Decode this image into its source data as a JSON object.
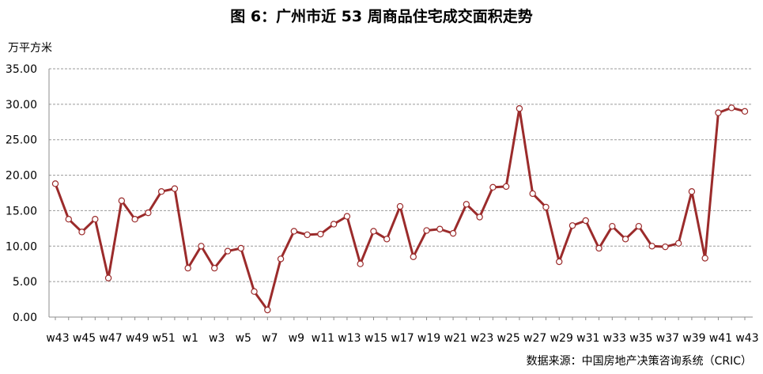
{
  "chart_data": {
    "type": "line",
    "title": "图 6：广州市近 53 周商品住宅成交面积走势",
    "ylabel": "万平方米",
    "source": "数据来源：中国房地产决策咨询系统（CRIC）",
    "ylim": [
      0,
      35
    ],
    "yticks": [
      "0.00",
      "5.00",
      "10.00",
      "15.00",
      "20.00",
      "25.00",
      "30.00",
      "35.00"
    ],
    "grid": true,
    "legend": "none",
    "line_color": "#9b2b2b",
    "categories": [
      "w43",
      "w44",
      "w45",
      "w46",
      "w47",
      "w48",
      "w49",
      "w50",
      "w51",
      "w52",
      "w1",
      "w2",
      "w3",
      "w4",
      "w5",
      "w6",
      "w7",
      "w8",
      "w9",
      "w10",
      "w11",
      "w12",
      "w13",
      "w14",
      "w15",
      "w16",
      "w17",
      "w18",
      "w19",
      "w20",
      "w21",
      "w22",
      "w23",
      "w24",
      "w25",
      "w26",
      "w27",
      "w28",
      "w29",
      "w30",
      "w31",
      "w32",
      "w33",
      "w34",
      "w35",
      "w36",
      "w37",
      "w38",
      "w39",
      "w40",
      "w41",
      "w42",
      "w43"
    ],
    "x_tick_labels": [
      "w43",
      "",
      "w45",
      "",
      "w47",
      "",
      "w49",
      "",
      "w51",
      "",
      "w1",
      "",
      "w3",
      "",
      "w5",
      "",
      "w7",
      "",
      "w9",
      "",
      "w11",
      "",
      "w13",
      "",
      "w15",
      "",
      "w17",
      "",
      "w19",
      "",
      "w21",
      "",
      "w23",
      "",
      "w25",
      "",
      "w27",
      "",
      "w29",
      "",
      "w31",
      "",
      "w33",
      "",
      "w35",
      "",
      "w37",
      "",
      "w39",
      "",
      "w41",
      "",
      "w43"
    ],
    "values": [
      18.8,
      13.8,
      12.0,
      13.8,
      5.5,
      16.4,
      13.8,
      14.7,
      17.7,
      18.1,
      6.9,
      10.0,
      6.9,
      9.3,
      9.7,
      3.6,
      1.0,
      8.2,
      12.1,
      11.6,
      11.7,
      13.1,
      14.2,
      7.5,
      12.1,
      11.0,
      15.6,
      8.5,
      12.2,
      12.4,
      11.8,
      15.9,
      14.1,
      18.3,
      18.4,
      29.4,
      17.4,
      15.5,
      7.8,
      12.9,
      13.6,
      9.7,
      12.8,
      11.0,
      12.8,
      10.0,
      9.9,
      10.4,
      17.7,
      8.3,
      28.8,
      29.5,
      29.0
    ]
  }
}
